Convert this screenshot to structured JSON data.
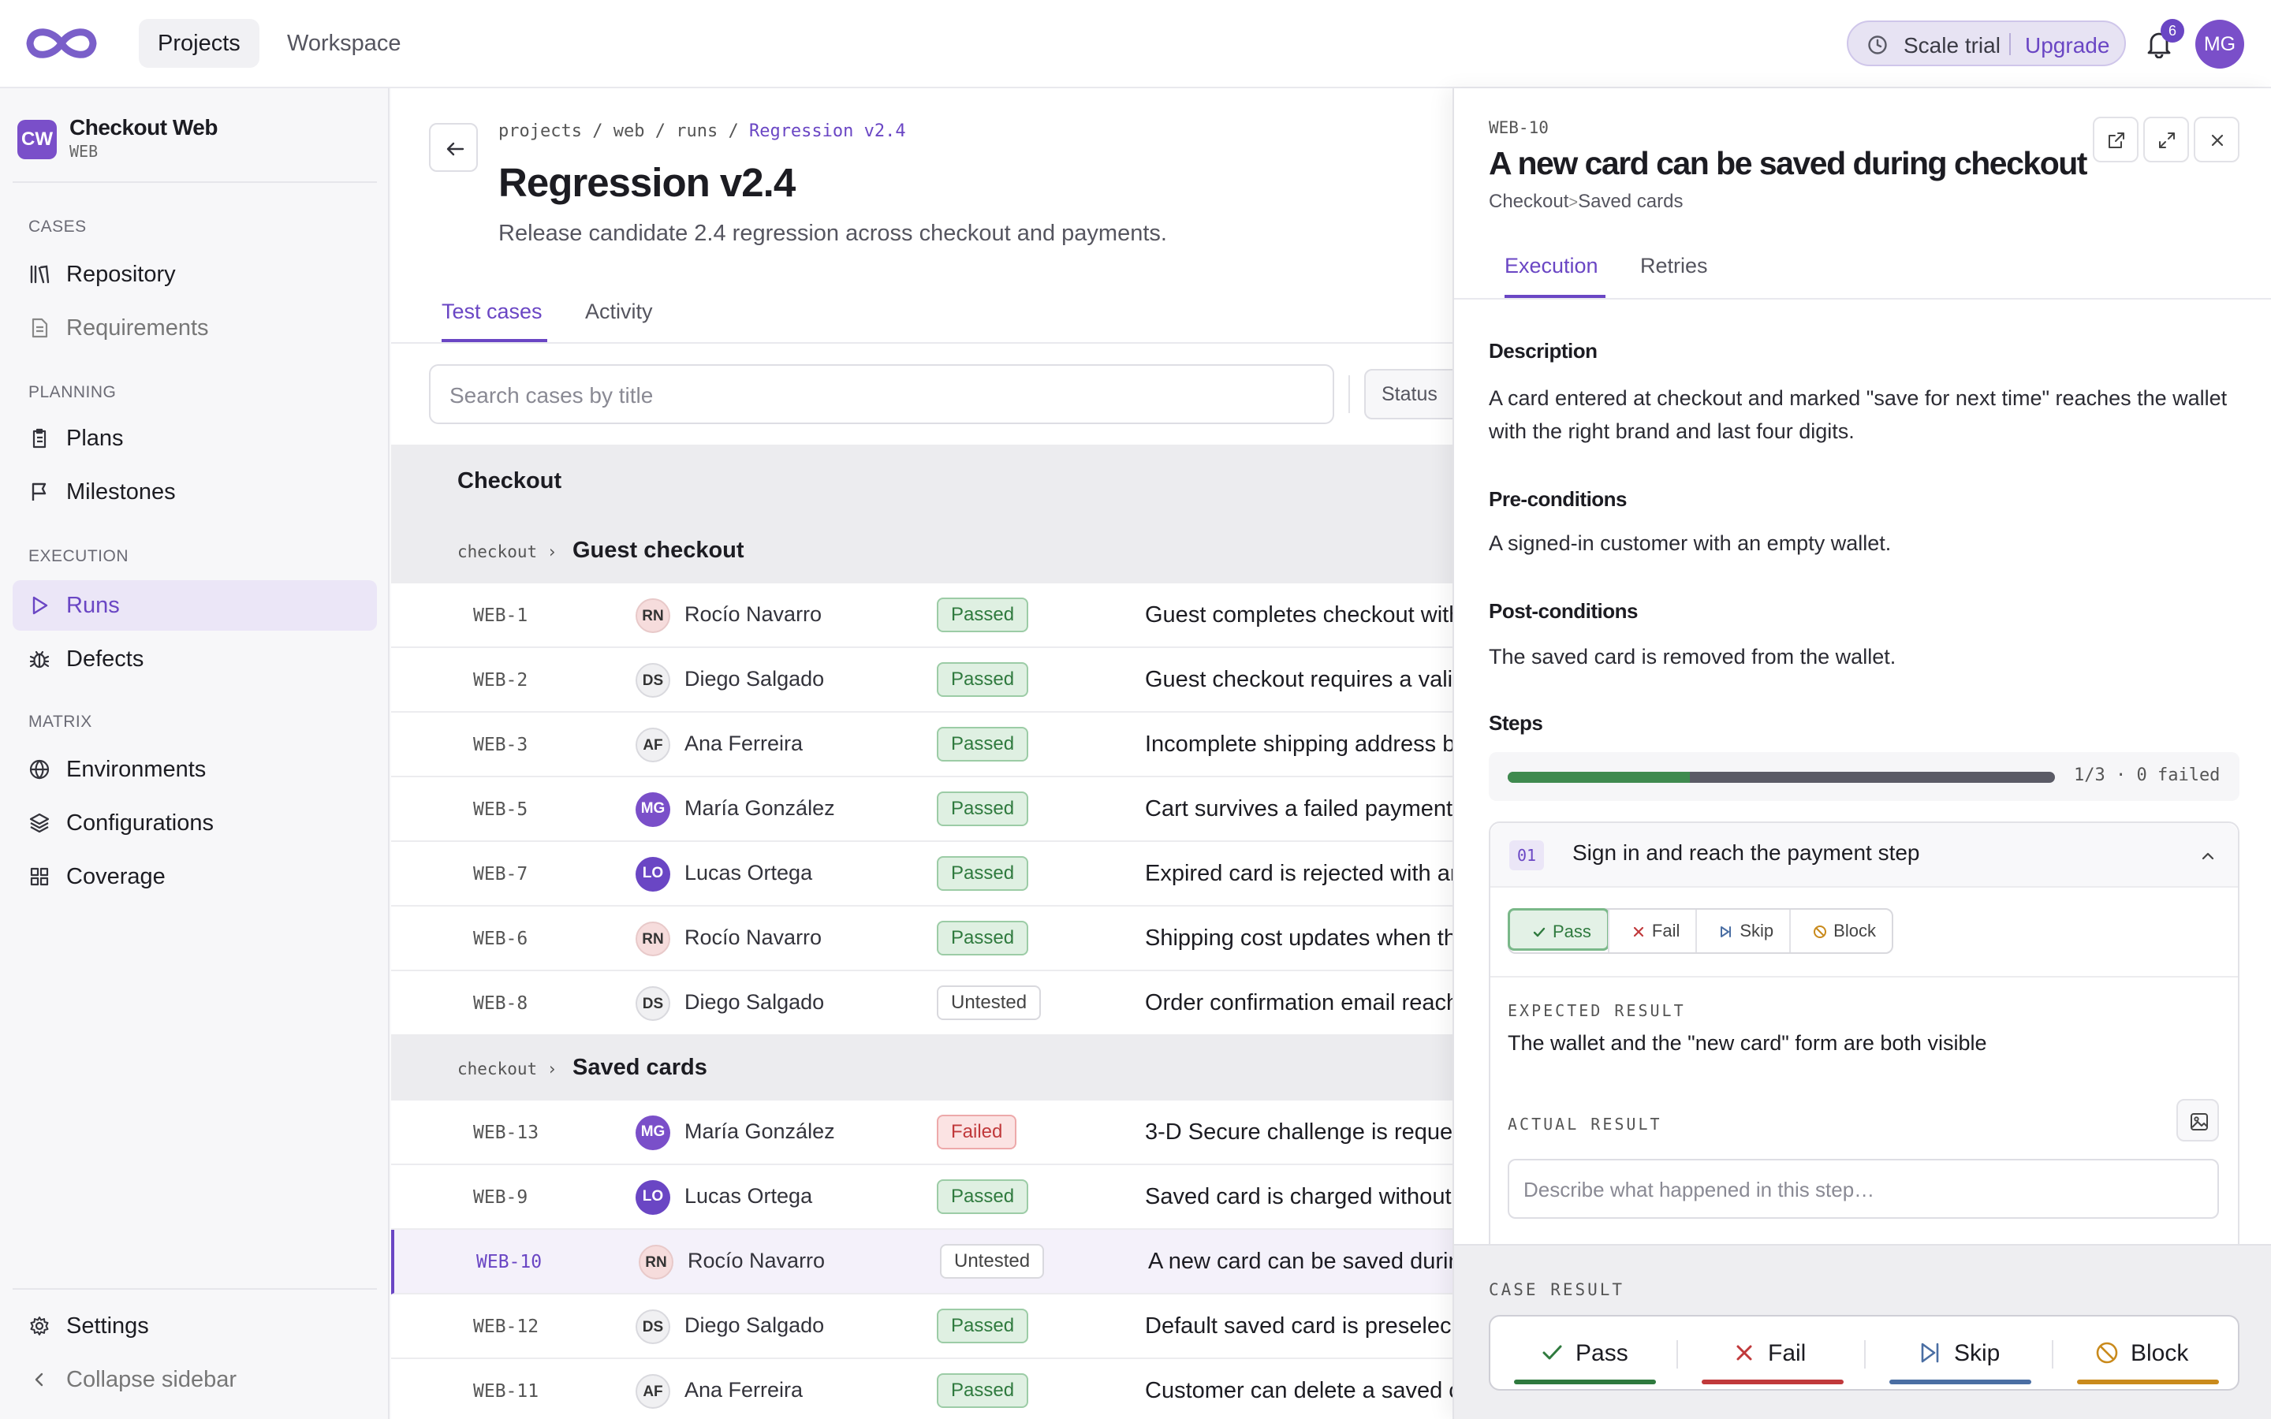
{
  "topbar": {
    "nav": [
      "Projects",
      "Workspace"
    ],
    "trial_label": "Scale trial",
    "upgrade_label": "Upgrade",
    "notification_count": "6",
    "user_initials": "MG"
  },
  "sidebar": {
    "project_badge": "CW",
    "project_name": "Checkout Web",
    "project_key": "WEB",
    "sections": {
      "cases": "CASES",
      "planning": "PLANNING",
      "execution": "EXECUTION",
      "matrix": "MATRIX"
    },
    "items": {
      "repository": "Repository",
      "requirements": "Requirements",
      "plans": "Plans",
      "milestones": "Milestones",
      "runs": "Runs",
      "defects": "Defects",
      "environments": "Environments",
      "configurations": "Configurations",
      "coverage": "Coverage",
      "settings": "Settings",
      "collapse": "Collapse sidebar"
    }
  },
  "run": {
    "breadcrumb": [
      "projects",
      "web",
      "runs"
    ],
    "breadcrumb_sep": "/",
    "breadcrumb_current": "Regression v2.4",
    "title": "Regression v2.4",
    "description": "Release candidate 2.4 regression across checkout and payments.",
    "tabs": [
      "Test cases",
      "Activity"
    ],
    "search_placeholder": "Search cases by title",
    "status_filter": "Status",
    "group": "Checkout",
    "subgroups": [
      {
        "path": "checkout ›",
        "title": "Guest checkout"
      },
      {
        "path": "checkout ›",
        "title": "Saved cards"
      }
    ],
    "rows": [
      {
        "id": "WEB-1",
        "initials": "RN",
        "assignee": "Rocío Navarro",
        "status": "Passed",
        "title": "Guest completes checkout with"
      },
      {
        "id": "WEB-2",
        "initials": "DS",
        "assignee": "Diego Salgado",
        "status": "Passed",
        "title": "Guest checkout requires a vali"
      },
      {
        "id": "WEB-3",
        "initials": "AF",
        "assignee": "Ana Ferreira",
        "status": "Passed",
        "title": "Incomplete shipping address b"
      },
      {
        "id": "WEB-5",
        "initials": "MG",
        "assignee": "María González",
        "status": "Passed",
        "title": "Cart survives a failed payment"
      },
      {
        "id": "WEB-7",
        "initials": "LO",
        "assignee": "Lucas Ortega",
        "status": "Passed",
        "title": "Expired card is rejected with an"
      },
      {
        "id": "WEB-6",
        "initials": "RN",
        "assignee": "Rocío Navarro",
        "status": "Passed",
        "title": "Shipping cost updates when th"
      },
      {
        "id": "WEB-8",
        "initials": "DS",
        "assignee": "Diego Salgado",
        "status": "Untested",
        "title": "Order confirmation email reach"
      },
      {
        "id": "WEB-13",
        "initials": "MG",
        "assignee": "María González",
        "status": "Failed",
        "title": "3-D Secure challenge is reque"
      },
      {
        "id": "WEB-9",
        "initials": "LO",
        "assignee": "Lucas Ortega",
        "status": "Passed",
        "title": "Saved card is charged without"
      },
      {
        "id": "WEB-10",
        "initials": "RN",
        "assignee": "Rocío Navarro",
        "status": "Untested",
        "title": "A new card can be saved durin"
      },
      {
        "id": "WEB-12",
        "initials": "DS",
        "assignee": "Diego Salgado",
        "status": "Passed",
        "title": "Default saved card is preselec"
      },
      {
        "id": "WEB-11",
        "initials": "AF",
        "assignee": "Ana Ferreira",
        "status": "Passed",
        "title": "Customer can delete a saved c"
      }
    ]
  },
  "panel": {
    "case_id": "WEB-10",
    "title": "A new card can be saved during checkout",
    "crumb_parent": "Checkout",
    "crumb_sep": ">",
    "crumb_child": "Saved cards",
    "tabs": [
      "Execution",
      "Retries"
    ],
    "description_label": "Description",
    "description": "A card entered at checkout and marked \"save for next time\" reaches the wallet with the right brand and last four digits.",
    "preconditions_label": "Pre-conditions",
    "preconditions": "A signed-in customer with an empty wallet.",
    "postconditions_label": "Post-conditions",
    "postconditions": "The saved card is removed from the wallet.",
    "steps_label": "Steps",
    "steps_progress_text": "1/3 · 0 failed",
    "steps_progress_fraction": 0.333,
    "step": {
      "number": "01",
      "title": "Sign in and reach the payment step",
      "options": [
        "Pass",
        "Fail",
        "Skip",
        "Block"
      ],
      "selected": "Pass",
      "expected_label": "EXPECTED RESULT",
      "expected": "The wallet and the \"new card\" form are both visible",
      "actual_label": "ACTUAL RESULT",
      "actual_placeholder": "Describe what happened in this step…"
    },
    "case_result_label": "CASE RESULT",
    "case_result_options": [
      "Pass",
      "Fail",
      "Skip",
      "Block"
    ]
  },
  "colors": {
    "accent": "#6a46c4",
    "pass": "#2f7a3e",
    "fail": "#c0393b",
    "skip": "#4a6ea3",
    "block": "#c98a1c"
  }
}
